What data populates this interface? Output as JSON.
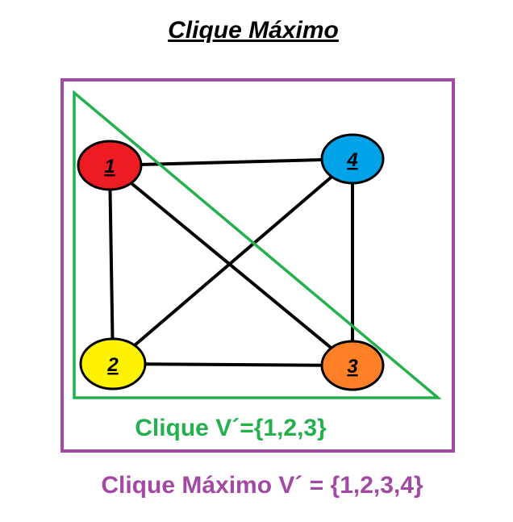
{
  "title": "Clique Máximo",
  "nodes": [
    {
      "id": "1",
      "label": "1",
      "color": "#ed1c24"
    },
    {
      "id": "2",
      "label": "2",
      "color": "#fff200"
    },
    {
      "id": "3",
      "label": "3",
      "color": "#ff7f27"
    },
    {
      "id": "4",
      "label": "4",
      "color": "#00a2e8"
    }
  ],
  "edges": [
    [
      "1",
      "4"
    ],
    [
      "1",
      "2"
    ],
    [
      "1",
      "3"
    ],
    [
      "2",
      "3"
    ],
    [
      "2",
      "4"
    ],
    [
      "4",
      "3"
    ]
  ],
  "clique_caption": "Clique V´={1,2,3}",
  "max_clique_caption": "Clique Máximo V´ = {1,2,3,4}",
  "colors": {
    "clique": "#22b14c",
    "max_clique": "#a349a4",
    "edge": "#000000",
    "text": "#000000"
  }
}
